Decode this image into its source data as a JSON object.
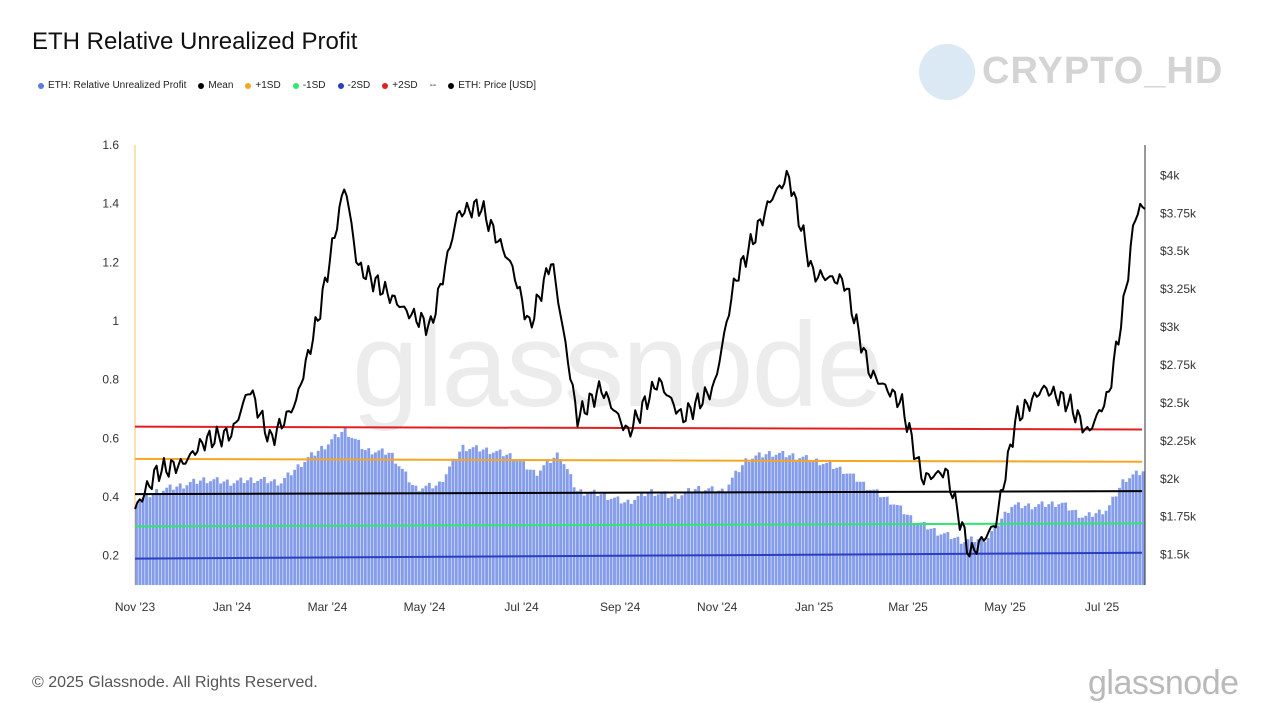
{
  "title": "ETH Relative Unrealized Profit",
  "legend": [
    {
      "label": "ETH: Relative Unrealized Profit",
      "color": "#5b7be0",
      "marker": "dot"
    },
    {
      "label": "Mean",
      "color": "#000000",
      "marker": "dot"
    },
    {
      "label": "+1SD",
      "color": "#f5a623",
      "marker": "dot"
    },
    {
      "label": "-1SD",
      "color": "#2ee86c",
      "marker": "dot"
    },
    {
      "label": "-2SD",
      "color": "#2a3fbf",
      "marker": "dot"
    },
    {
      "label": "+2SD",
      "color": "#e02020",
      "marker": "dot"
    },
    {
      "label": "ETH: Price [USD]",
      "color": "#000000",
      "marker": "dash-dot"
    }
  ],
  "watermark_text": "CRYPTO_HD",
  "bg_watermark": "glassnode",
  "footer": "© 2025 Glassnode. All Rights Reserved.",
  "brand_logo": "glassnode",
  "chart_data": {
    "type": "bar+line",
    "x_tick_labels": [
      "Nov '23",
      "Jan '24",
      "Mar '24",
      "May '24",
      "Jul '24",
      "Sep '24",
      "Nov '24",
      "Jan '25",
      "Mar '25",
      "May '25",
      "Jul '25"
    ],
    "x_range": [
      "2023-11-01",
      "2025-07-28"
    ],
    "left_axis": {
      "ticks": [
        0.2,
        0.4,
        0.6,
        0.8,
        1,
        1.2,
        1.4,
        1.6
      ],
      "tick_labels": [
        "0.2",
        "0.4",
        "0.6",
        "0.8",
        "1",
        "1.2",
        "1.4",
        "1.6"
      ],
      "range": [
        0.1,
        1.6
      ]
    },
    "right_axis": {
      "ticks": [
        1500,
        1750,
        2000,
        2250,
        2500,
        2750,
        3000,
        3250,
        3500,
        3750,
        4000
      ],
      "tick_labels": [
        "$1.5k",
        "$1.75k",
        "$2k",
        "$2.25k",
        "$2.5k",
        "$2.75k",
        "$3k",
        "$3.25k",
        "$3.5k",
        "$3.75k",
        "$4k"
      ],
      "range": [
        1300,
        4200
      ]
    },
    "rup_series": {
      "name": "ETH: Relative Unrealized Profit",
      "color": "#6f8be6",
      "points": [
        [
          "2023-11-01",
          0.38
        ],
        [
          "2023-11-15",
          0.42
        ],
        [
          "2023-12-01",
          0.44
        ],
        [
          "2023-12-15",
          0.46
        ],
        [
          "2024-01-01",
          0.45
        ],
        [
          "2024-01-15",
          0.46
        ],
        [
          "2024-02-01",
          0.45
        ],
        [
          "2024-02-15",
          0.52
        ],
        [
          "2024-03-01",
          0.58
        ],
        [
          "2024-03-12",
          0.63
        ],
        [
          "2024-03-25",
          0.56
        ],
        [
          "2024-04-10",
          0.55
        ],
        [
          "2024-04-25",
          0.43
        ],
        [
          "2024-05-10",
          0.44
        ],
        [
          "2024-05-25",
          0.57
        ],
        [
          "2024-06-10",
          0.56
        ],
        [
          "2024-06-25",
          0.54
        ],
        [
          "2024-07-10",
          0.48
        ],
        [
          "2024-07-25",
          0.55
        ],
        [
          "2024-08-05",
          0.42
        ],
        [
          "2024-08-20",
          0.41
        ],
        [
          "2024-09-05",
          0.38
        ],
        [
          "2024-09-20",
          0.42
        ],
        [
          "2024-10-05",
          0.4
        ],
        [
          "2024-10-20",
          0.43
        ],
        [
          "2024-11-05",
          0.42
        ],
        [
          "2024-11-20",
          0.53
        ],
        [
          "2024-12-05",
          0.55
        ],
        [
          "2024-12-20",
          0.54
        ],
        [
          "2025-01-05",
          0.52
        ],
        [
          "2025-01-20",
          0.49
        ],
        [
          "2025-02-05",
          0.43
        ],
        [
          "2025-02-20",
          0.38
        ],
        [
          "2025-03-05",
          0.32
        ],
        [
          "2025-03-20",
          0.28
        ],
        [
          "2025-04-05",
          0.25
        ],
        [
          "2025-04-20",
          0.26
        ],
        [
          "2025-05-05",
          0.37
        ],
        [
          "2025-05-20",
          0.37
        ],
        [
          "2025-06-05",
          0.38
        ],
        [
          "2025-06-20",
          0.33
        ],
        [
          "2025-07-05",
          0.36
        ],
        [
          "2025-07-15",
          0.46
        ],
        [
          "2025-07-28",
          0.49
        ]
      ]
    },
    "bands": [
      {
        "name": "+2SD",
        "color": "#e02020",
        "values": [
          0.64,
          0.63
        ]
      },
      {
        "name": "+1SD",
        "color": "#f5a623",
        "values": [
          0.53,
          0.52
        ]
      },
      {
        "name": "Mean",
        "color": "#000000",
        "values": [
          0.41,
          0.42
        ]
      },
      {
        "name": "-1SD",
        "color": "#2ee86c",
        "values": [
          0.3,
          0.31
        ]
      },
      {
        "name": "-2SD",
        "color": "#2a3fbf",
        "values": [
          0.19,
          0.21
        ]
      }
    ],
    "price_series": {
      "name": "ETH: Price [USD]",
      "color": "#000000",
      "points": [
        [
          "2023-11-01",
          1800
        ],
        [
          "2023-11-15",
          2050
        ],
        [
          "2023-12-01",
          2100
        ],
        [
          "2023-12-15",
          2250
        ],
        [
          "2024-01-01",
          2300
        ],
        [
          "2024-01-12",
          2600
        ],
        [
          "2024-01-25",
          2250
        ],
        [
          "2024-02-10",
          2500
        ],
        [
          "2024-02-25",
          3100
        ],
        [
          "2024-03-12",
          3950
        ],
        [
          "2024-03-20",
          3400
        ],
        [
          "2024-04-05",
          3250
        ],
        [
          "2024-04-20",
          3100
        ],
        [
          "2024-05-05",
          3000
        ],
        [
          "2024-05-22",
          3750
        ],
        [
          "2024-06-05",
          3800
        ],
        [
          "2024-06-25",
          3400
        ],
        [
          "2024-07-06",
          3000
        ],
        [
          "2024-07-20",
          3450
        ],
        [
          "2024-08-05",
          2400
        ],
        [
          "2024-08-20",
          2600
        ],
        [
          "2024-09-06",
          2300
        ],
        [
          "2024-09-25",
          2650
        ],
        [
          "2024-10-10",
          2400
        ],
        [
          "2024-10-30",
          2600
        ],
        [
          "2024-11-12",
          3300
        ],
        [
          "2024-12-05",
          3850
        ],
        [
          "2024-12-16",
          4000
        ],
        [
          "2024-12-31",
          3350
        ],
        [
          "2025-01-20",
          3300
        ],
        [
          "2025-02-05",
          2700
        ],
        [
          "2025-02-25",
          2500
        ],
        [
          "2025-03-10",
          2000
        ],
        [
          "2025-03-25",
          2050
        ],
        [
          "2025-04-09",
          1500
        ],
        [
          "2025-04-25",
          1700
        ],
        [
          "2025-05-08",
          2400
        ],
        [
          "2025-05-25",
          2600
        ],
        [
          "2025-06-10",
          2500
        ],
        [
          "2025-06-22",
          2300
        ],
        [
          "2025-07-05",
          2550
        ],
        [
          "2025-07-14",
          3100
        ],
        [
          "2025-07-22",
          3750
        ],
        [
          "2025-07-28",
          3800
        ]
      ]
    },
    "grid": false,
    "legend_position": "top-left"
  }
}
